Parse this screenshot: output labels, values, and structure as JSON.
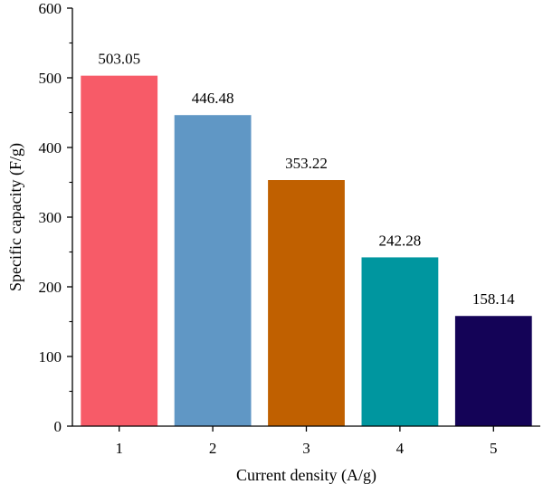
{
  "chart_data": {
    "type": "bar",
    "title": "",
    "xlabel": "Current density (A/g)",
    "ylabel": "Specific capacity (F/g)",
    "categories": [
      "1",
      "2",
      "3",
      "4",
      "5"
    ],
    "values": [
      503.05,
      446.48,
      353.22,
      242.28,
      158.14
    ],
    "value_labels": [
      "503.05",
      "446.48",
      "353.22",
      "242.28",
      "158.14"
    ],
    "colors": [
      "#F75B68",
      "#6097C5",
      "#C06000",
      "#00969F",
      "#140357"
    ],
    "ylim": [
      0,
      600
    ],
    "yticks": [
      0,
      100,
      200,
      300,
      400,
      500,
      600
    ],
    "ytick_labels": [
      "0",
      "100",
      "200",
      "300",
      "400",
      "500",
      "600"
    ],
    "y_minor_ticks": true,
    "grid": false,
    "legend": "none"
  }
}
